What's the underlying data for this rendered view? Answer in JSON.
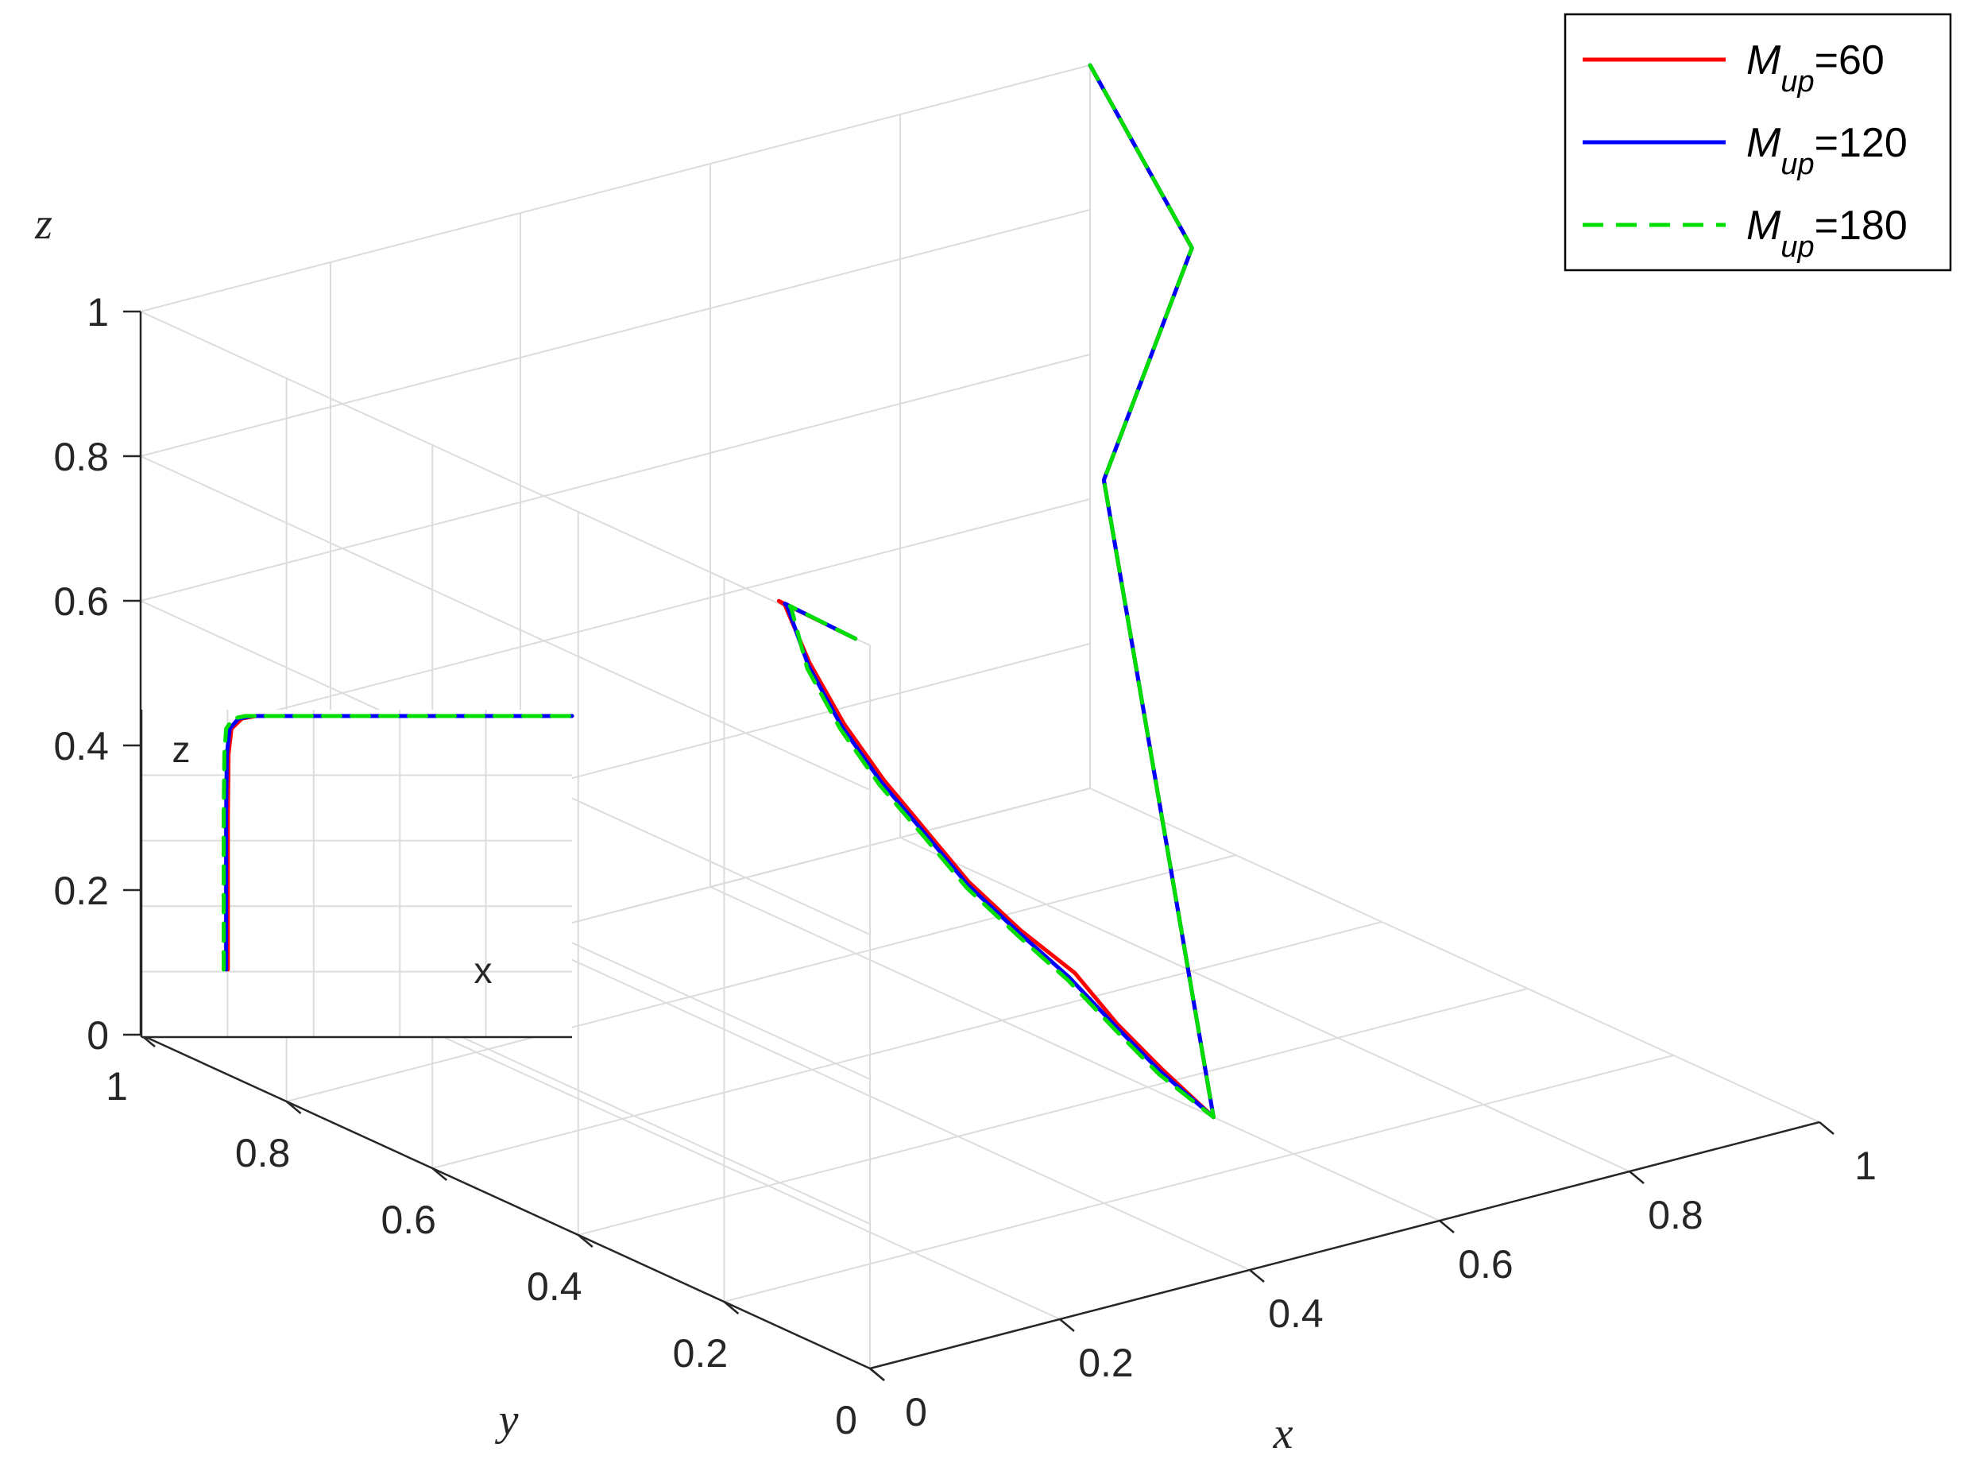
{
  "chart_data": {
    "type": "line",
    "projection": "3d",
    "axes": {
      "x": {
        "label": "x",
        "range": [
          0,
          1
        ],
        "ticks": [
          "0",
          "0.2",
          "0.4",
          "0.6",
          "0.8",
          "1"
        ]
      },
      "y": {
        "label": "y",
        "range": [
          0,
          1
        ],
        "ticks": [
          "0",
          "0.2",
          "0.4",
          "0.6",
          "0.8",
          "1"
        ]
      },
      "z": {
        "label": "z",
        "range": [
          0,
          1
        ],
        "ticks": [
          "0",
          "0.2",
          "0.4",
          "0.6",
          "0.8",
          "1"
        ]
      }
    },
    "grid": true,
    "legend_position": "top-right",
    "series": [
      {
        "name": "M_up=60",
        "name_main": "M",
        "name_sub": "up",
        "name_value": "=60",
        "color": "#ff0000",
        "dash": "solid",
        "points": [
          [
            0,
            0.02,
            1
          ],
          [
            0.004,
            0.13,
            1
          ],
          [
            0.01,
            0.13,
            0.993
          ],
          [
            0.04,
            0.135,
            0.9
          ],
          [
            0.08,
            0.14,
            0.8
          ],
          [
            0.13,
            0.15,
            0.7
          ],
          [
            0.19,
            0.17,
            0.6
          ],
          [
            0.25,
            0.19,
            0.5
          ],
          [
            0.32,
            0.21,
            0.4
          ],
          [
            0.4,
            0.24,
            0.3
          ],
          [
            0.46,
            0.26,
            0.2
          ],
          [
            0.53,
            0.29,
            0.1
          ],
          [
            0.6,
            0.31,
            0.0
          ],
          [
            0.4,
            0.2,
            1.0
          ],
          [
            0.8,
            0.6,
            1.0
          ],
          [
            1.0,
            1.0,
            1.0
          ]
        ]
      },
      {
        "name": "M_up=120",
        "name_main": "M",
        "name_sub": "up",
        "name_value": "=120",
        "color": "#0000ff",
        "dash": "solid",
        "points": [
          [
            0,
            0.02,
            1
          ],
          [
            0.004,
            0.122,
            1
          ],
          [
            0.009,
            0.125,
            0.993
          ],
          [
            0.035,
            0.13,
            0.9
          ],
          [
            0.075,
            0.137,
            0.8
          ],
          [
            0.125,
            0.147,
            0.7
          ],
          [
            0.185,
            0.165,
            0.6
          ],
          [
            0.245,
            0.185,
            0.5
          ],
          [
            0.315,
            0.205,
            0.4
          ],
          [
            0.39,
            0.235,
            0.3
          ],
          [
            0.455,
            0.255,
            0.2
          ],
          [
            0.525,
            0.285,
            0.1
          ],
          [
            0.6,
            0.31,
            0.0
          ],
          [
            0.4,
            0.2,
            1.0
          ],
          [
            0.8,
            0.6,
            1.0
          ],
          [
            1.0,
            1.0,
            1.0
          ]
        ]
      },
      {
        "name": "M_up=180",
        "name_main": "M",
        "name_sub": "up",
        "name_value": "=180",
        "color": "#00dd00",
        "dash": "dashed",
        "points": [
          [
            0,
            0.02,
            1
          ],
          [
            0.004,
            0.115,
            1
          ],
          [
            0.008,
            0.118,
            0.993
          ],
          [
            0.03,
            0.125,
            0.9
          ],
          [
            0.07,
            0.132,
            0.8
          ],
          [
            0.12,
            0.143,
            0.7
          ],
          [
            0.18,
            0.16,
            0.6
          ],
          [
            0.24,
            0.18,
            0.5
          ],
          [
            0.31,
            0.2,
            0.4
          ],
          [
            0.385,
            0.23,
            0.3
          ],
          [
            0.45,
            0.25,
            0.2
          ],
          [
            0.52,
            0.28,
            0.1
          ],
          [
            0.6,
            0.31,
            0.0
          ],
          [
            0.4,
            0.2,
            1.0
          ],
          [
            0.8,
            0.6,
            1.0
          ],
          [
            1.0,
            1.0,
            1.0
          ]
        ]
      }
    ],
    "inset": {
      "labels": {
        "z": "z",
        "x": "x"
      },
      "axes": {
        "x": [
          0,
          1
        ],
        "z": [
          0,
          1
        ]
      },
      "grid": true,
      "series": [
        {
          "color": "#ff0000",
          "dash": "solid",
          "points": [
            [
              0.02,
              0
            ],
            [
              0.02,
              0.6
            ],
            [
              0.022,
              0.85
            ],
            [
              0.03,
              0.95
            ],
            [
              0.06,
              0.99
            ],
            [
              0.1,
              1.0
            ],
            [
              1.0,
              1.0
            ]
          ]
        },
        {
          "color": "#0000ff",
          "dash": "solid",
          "points": [
            [
              0.015,
              0
            ],
            [
              0.015,
              0.6
            ],
            [
              0.017,
              0.85
            ],
            [
              0.025,
              0.95
            ],
            [
              0.05,
              0.99
            ],
            [
              0.09,
              1.0
            ],
            [
              1.0,
              1.0
            ]
          ]
        },
        {
          "color": "#00dd00",
          "dash": "dashed",
          "points": [
            [
              0.008,
              0
            ],
            [
              0.008,
              0.6
            ],
            [
              0.01,
              0.85
            ],
            [
              0.015,
              0.95
            ],
            [
              0.035,
              0.99
            ],
            [
              0.07,
              1.0
            ],
            [
              1.0,
              1.0
            ]
          ]
        }
      ]
    }
  }
}
